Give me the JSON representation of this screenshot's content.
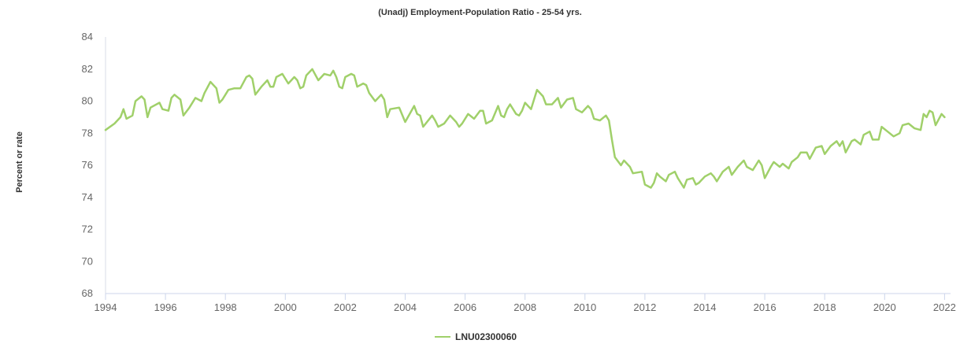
{
  "chart_data": {
    "type": "line",
    "title": "(Unadj) Employment-Population Ratio - 25-54 yrs.",
    "xlabel": "",
    "ylabel": "Percent or rate",
    "xlim": [
      1994,
      2022.2
    ],
    "ylim": [
      68,
      84
    ],
    "x_ticks": [
      "1994",
      "1996",
      "1998",
      "2000",
      "2002",
      "2004",
      "2006",
      "2008",
      "2010",
      "2012",
      "2014",
      "2016",
      "2018",
      "2020",
      "2022"
    ],
    "y_ticks": [
      "68",
      "70",
      "72",
      "74",
      "76",
      "78",
      "80",
      "82",
      "84"
    ],
    "grid": false,
    "legend_position": "bottom",
    "series": [
      {
        "name": "LNU02300060",
        "color": "#a0d06a",
        "points": [
          [
            1994.0,
            78.2
          ],
          [
            1994.3,
            78.6
          ],
          [
            1994.5,
            79.0
          ],
          [
            1994.6,
            79.5
          ],
          [
            1994.7,
            78.9
          ],
          [
            1994.9,
            79.1
          ],
          [
            1995.0,
            80.0
          ],
          [
            1995.2,
            80.3
          ],
          [
            1995.3,
            80.1
          ],
          [
            1995.4,
            79.0
          ],
          [
            1995.5,
            79.6
          ],
          [
            1995.8,
            79.9
          ],
          [
            1995.9,
            79.5
          ],
          [
            1996.1,
            79.4
          ],
          [
            1996.2,
            80.2
          ],
          [
            1996.3,
            80.4
          ],
          [
            1996.5,
            80.1
          ],
          [
            1996.6,
            79.1
          ],
          [
            1996.8,
            79.6
          ],
          [
            1997.0,
            80.2
          ],
          [
            1997.2,
            80.0
          ],
          [
            1997.3,
            80.5
          ],
          [
            1997.5,
            81.2
          ],
          [
            1997.7,
            80.8
          ],
          [
            1997.8,
            79.9
          ],
          [
            1997.9,
            80.1
          ],
          [
            1998.1,
            80.7
          ],
          [
            1998.3,
            80.8
          ],
          [
            1998.5,
            80.8
          ],
          [
            1998.7,
            81.5
          ],
          [
            1998.8,
            81.6
          ],
          [
            1998.9,
            81.4
          ],
          [
            1999.0,
            80.4
          ],
          [
            1999.2,
            80.9
          ],
          [
            1999.4,
            81.3
          ],
          [
            1999.5,
            80.9
          ],
          [
            1999.6,
            80.9
          ],
          [
            1999.7,
            81.5
          ],
          [
            1999.9,
            81.7
          ],
          [
            2000.1,
            81.1
          ],
          [
            2000.3,
            81.5
          ],
          [
            2000.4,
            81.3
          ],
          [
            2000.5,
            80.8
          ],
          [
            2000.6,
            80.9
          ],
          [
            2000.7,
            81.6
          ],
          [
            2000.9,
            82.0
          ],
          [
            2001.1,
            81.3
          ],
          [
            2001.3,
            81.7
          ],
          [
            2001.5,
            81.6
          ],
          [
            2001.6,
            81.9
          ],
          [
            2001.7,
            81.5
          ],
          [
            2001.8,
            80.9
          ],
          [
            2001.9,
            80.8
          ],
          [
            2002.0,
            81.5
          ],
          [
            2002.2,
            81.7
          ],
          [
            2002.3,
            81.6
          ],
          [
            2002.4,
            80.9
          ],
          [
            2002.6,
            81.1
          ],
          [
            2002.7,
            81.0
          ],
          [
            2002.8,
            80.5
          ],
          [
            2003.0,
            80.0
          ],
          [
            2003.2,
            80.4
          ],
          [
            2003.3,
            80.1
          ],
          [
            2003.4,
            79.0
          ],
          [
            2003.5,
            79.5
          ],
          [
            2003.8,
            79.6
          ],
          [
            2004.0,
            78.7
          ],
          [
            2004.3,
            79.7
          ],
          [
            2004.4,
            79.2
          ],
          [
            2004.5,
            79.1
          ],
          [
            2004.6,
            78.4
          ],
          [
            2004.9,
            79.1
          ],
          [
            2005.0,
            78.8
          ],
          [
            2005.1,
            78.4
          ],
          [
            2005.3,
            78.6
          ],
          [
            2005.5,
            79.1
          ],
          [
            2005.7,
            78.7
          ],
          [
            2005.8,
            78.4
          ],
          [
            2005.9,
            78.6
          ],
          [
            2006.1,
            79.2
          ],
          [
            2006.3,
            78.9
          ],
          [
            2006.5,
            79.4
          ],
          [
            2006.6,
            79.4
          ],
          [
            2006.7,
            78.6
          ],
          [
            2006.9,
            78.8
          ],
          [
            2007.1,
            79.7
          ],
          [
            2007.2,
            79.1
          ],
          [
            2007.3,
            79.0
          ],
          [
            2007.4,
            79.5
          ],
          [
            2007.5,
            79.8
          ],
          [
            2007.7,
            79.2
          ],
          [
            2007.8,
            79.1
          ],
          [
            2007.9,
            79.4
          ],
          [
            2008.0,
            79.9
          ],
          [
            2008.2,
            79.5
          ],
          [
            2008.4,
            80.7
          ],
          [
            2008.6,
            80.3
          ],
          [
            2008.7,
            79.8
          ],
          [
            2008.9,
            79.8
          ],
          [
            2009.1,
            80.2
          ],
          [
            2009.2,
            79.6
          ],
          [
            2009.4,
            80.1
          ],
          [
            2009.6,
            80.2
          ],
          [
            2009.7,
            79.5
          ],
          [
            2009.9,
            79.3
          ],
          [
            2010.1,
            79.7
          ],
          [
            2010.2,
            79.5
          ],
          [
            2010.3,
            78.9
          ],
          [
            2010.5,
            78.8
          ],
          [
            2010.7,
            79.1
          ],
          [
            2010.8,
            78.8
          ],
          [
            2010.9,
            77.6
          ],
          [
            2011.0,
            76.5
          ],
          [
            2011.2,
            76.0
          ],
          [
            2011.3,
            76.3
          ],
          [
            2011.5,
            75.9
          ],
          [
            2011.6,
            75.5
          ],
          [
            2011.9,
            75.6
          ],
          [
            2012.0,
            74.8
          ],
          [
            2012.2,
            74.6
          ],
          [
            2012.3,
            74.9
          ],
          [
            2012.4,
            75.5
          ],
          [
            2012.5,
            75.3
          ],
          [
            2012.7,
            75.0
          ],
          [
            2012.8,
            75.4
          ],
          [
            2013.0,
            75.6
          ],
          [
            2013.1,
            75.2
          ],
          [
            2013.3,
            74.6
          ],
          [
            2013.4,
            75.1
          ],
          [
            2013.6,
            75.2
          ],
          [
            2013.7,
            74.8
          ],
          [
            2013.8,
            74.9
          ],
          [
            2014.0,
            75.3
          ],
          [
            2014.2,
            75.5
          ],
          [
            2014.3,
            75.3
          ],
          [
            2014.4,
            75.0
          ],
          [
            2014.6,
            75.6
          ],
          [
            2014.8,
            75.9
          ],
          [
            2014.9,
            75.4
          ],
          [
            2015.1,
            75.9
          ],
          [
            2015.3,
            76.3
          ],
          [
            2015.4,
            75.9
          ],
          [
            2015.6,
            75.7
          ],
          [
            2015.8,
            76.3
          ],
          [
            2015.9,
            76.0
          ],
          [
            2016.0,
            75.2
          ],
          [
            2016.2,
            75.9
          ],
          [
            2016.3,
            76.2
          ],
          [
            2016.5,
            75.9
          ],
          [
            2016.6,
            76.1
          ],
          [
            2016.8,
            75.8
          ],
          [
            2016.9,
            76.2
          ],
          [
            2017.1,
            76.5
          ],
          [
            2017.2,
            76.8
          ],
          [
            2017.4,
            76.8
          ],
          [
            2017.5,
            76.4
          ],
          [
            2017.7,
            77.1
          ],
          [
            2017.9,
            77.2
          ],
          [
            2018.0,
            76.7
          ],
          [
            2018.2,
            77.2
          ],
          [
            2018.4,
            77.5
          ],
          [
            2018.5,
            77.2
          ],
          [
            2018.6,
            77.5
          ],
          [
            2018.7,
            76.8
          ],
          [
            2018.9,
            77.5
          ],
          [
            2019.0,
            77.6
          ],
          [
            2019.2,
            77.3
          ],
          [
            2019.3,
            77.9
          ],
          [
            2019.5,
            78.1
          ],
          [
            2019.6,
            77.6
          ],
          [
            2019.8,
            77.6
          ],
          [
            2019.9,
            78.4
          ],
          [
            2020.1,
            78.1
          ],
          [
            2020.3,
            77.8
          ],
          [
            2020.5,
            78.0
          ],
          [
            2020.6,
            78.5
          ],
          [
            2020.8,
            78.6
          ],
          [
            2021.0,
            78.3
          ],
          [
            2021.2,
            78.2
          ],
          [
            2021.3,
            79.2
          ],
          [
            2021.4,
            79.0
          ],
          [
            2021.5,
            79.4
          ],
          [
            2021.6,
            79.3
          ],
          [
            2021.7,
            78.5
          ],
          [
            2021.9,
            79.2
          ],
          [
            2022.0,
            79.0
          ]
        ]
      }
    ]
  },
  "legend": {
    "label": "LNU02300060"
  }
}
